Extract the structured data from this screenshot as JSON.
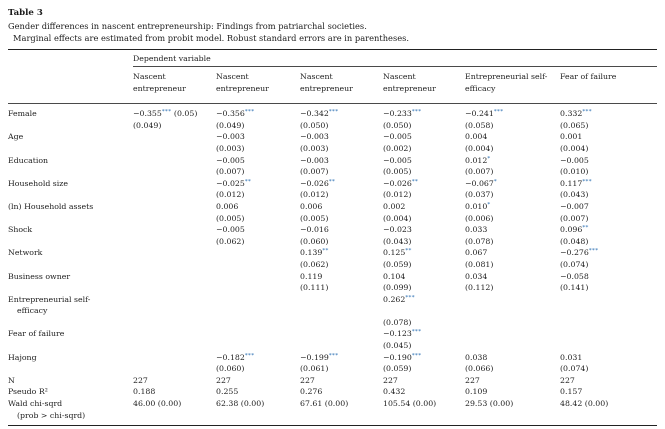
{
  "header": {
    "table_label": "Table 3",
    "caption": "Gender differences in nascent entrepreneurship: Findings from patriarchal societies.",
    "note": "Marginal effects are estimated from probit model. Robust standard errors are in parentheses."
  },
  "colors": {
    "significance_star_accent": "#2f72b4",
    "text": "#1c1c1c",
    "rule": "#222222"
  },
  "table": {
    "span_header": "Dependent variable",
    "columns": [
      [
        "Nascent",
        "entrepreneur"
      ],
      [
        "Nascent",
        "entrepreneur"
      ],
      [
        "Nascent",
        "entrepreneur"
      ],
      [
        "Nascent",
        "entrepreneur"
      ],
      [
        "Entrepreneurial self-",
        "efficacy"
      ],
      [
        "Fear of failure"
      ]
    ],
    "rows": [
      {
        "label": [
          "Female"
        ],
        "cells": [
          [
            "−0.355*** (0.05)",
            "(0.049)"
          ],
          [
            "−0.356***",
            "(0.049)"
          ],
          [
            "−0.342***",
            "(0.050)"
          ],
          [
            "−0.233***",
            "(0.050)"
          ],
          [
            "−0.241***",
            "(0.058)"
          ],
          [
            "0.332***",
            "(0.065)"
          ]
        ]
      },
      {
        "label": [
          "Age"
        ],
        "cells": [
          [],
          [
            "−0.003",
            "(0.003)"
          ],
          [
            "−0.003",
            "(0.003)"
          ],
          [
            "−0.005",
            "(0.002)"
          ],
          [
            "0.004",
            "(0.004)"
          ],
          [
            "0.001",
            "(0.004)"
          ]
        ]
      },
      {
        "label": [
          "Education"
        ],
        "cells": [
          [],
          [
            "−0.005",
            "(0.007)"
          ],
          [
            "−0.003",
            "(0.007)"
          ],
          [
            "−0.005",
            "(0.005)"
          ],
          [
            "0.012*",
            "(0.007)"
          ],
          [
            "−0.005",
            "(0.010)"
          ]
        ]
      },
      {
        "label": [
          "Household size"
        ],
        "cells": [
          [],
          [
            "−0.025**",
            "(0.012)"
          ],
          [
            "−0.026**",
            "(0.012)"
          ],
          [
            "−0.026**",
            "(0.012)"
          ],
          [
            "−0.067*",
            "(0.037)"
          ],
          [
            "0.117***",
            "(0.043)"
          ]
        ]
      },
      {
        "label": [
          "(ln) Household assets"
        ],
        "cells": [
          [],
          [
            "0.006",
            "(0.005)"
          ],
          [
            "0.006",
            "(0.005)"
          ],
          [
            "0.002",
            "(0.004)"
          ],
          [
            "0.010*",
            "(0.006)"
          ],
          [
            "−0.007",
            "(0.007)"
          ]
        ]
      },
      {
        "label": [
          "Shock"
        ],
        "cells": [
          [],
          [
            "−0.005",
            "(0.062)"
          ],
          [
            "−0.016",
            "(0.060)"
          ],
          [
            "−0.023",
            "(0.043)"
          ],
          [
            "0.033",
            "(0.078)"
          ],
          [
            "0.096**",
            "(0.048)"
          ]
        ]
      },
      {
        "label": [
          "Network"
        ],
        "cells": [
          [],
          [],
          [
            "0.139**",
            "(0.062)"
          ],
          [
            "0.125**",
            "(0.059)"
          ],
          [
            "0.067",
            "(0.081)"
          ],
          [
            "−0.276***",
            "(0.074)"
          ]
        ]
      },
      {
        "label": [
          "Business owner"
        ],
        "cells": [
          [],
          [],
          [
            "0.119",
            "(0.111)"
          ],
          [
            "0.104",
            "(0.099)"
          ],
          [
            "0.034",
            "(0.112)"
          ],
          [
            "−0.058",
            "(0.141)"
          ]
        ]
      },
      {
        "label": [
          "Entrepreneurial self-",
          "efficacy"
        ],
        "cells": [
          [],
          [],
          [],
          [
            "0.262***",
            "",
            "(0.078)"
          ],
          [],
          []
        ]
      },
      {
        "label": [
          "Fear of failure"
        ],
        "cells": [
          [],
          [],
          [],
          [
            "−0.123***",
            "(0.045)"
          ],
          [],
          []
        ]
      },
      {
        "label": [
          "Hajong"
        ],
        "cells": [
          [],
          [
            "−0.182***",
            "(0.060)"
          ],
          [
            "−0.199***",
            "(0.061)"
          ],
          [
            "−0.190***",
            "(0.059)"
          ],
          [
            "0.038",
            "(0.066)"
          ],
          [
            "0.031",
            "(0.074)"
          ]
        ]
      },
      {
        "label": [
          "N"
        ],
        "cells": [
          [
            "227"
          ],
          [
            "227"
          ],
          [
            "227"
          ],
          [
            "227"
          ],
          [
            "227"
          ],
          [
            "227"
          ]
        ]
      },
      {
        "label": [
          "Pseudo R²"
        ],
        "cells": [
          [
            "0.188"
          ],
          [
            "0.255"
          ],
          [
            "0.276"
          ],
          [
            "0.432"
          ],
          [
            "0.109"
          ],
          [
            "0.157"
          ]
        ]
      },
      {
        "label": [
          "Wald chi-sqrd",
          "(prob > chi-sqrd)"
        ],
        "cells": [
          [
            "46.00 (0.00)"
          ],
          [
            "62.38 (0.00)"
          ],
          [
            "67.61 (0.00)"
          ],
          [
            "105.54 (0.00)"
          ],
          [
            "29.53 (0.00)"
          ],
          [
            "48.42 (0.00)"
          ]
        ]
      }
    ]
  }
}
